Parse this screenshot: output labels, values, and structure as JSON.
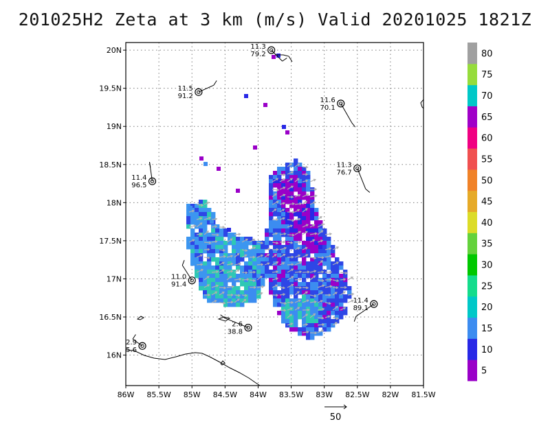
{
  "title": "201025H2 Zeta at 3 km (m/s) Valid 20201025 1821Z",
  "chart_data": {
    "type": "map",
    "xlim": [
      -86.0,
      -81.5
    ],
    "ylim": [
      15.6,
      20.1
    ],
    "x_ticks": [
      {
        "value": -86.0,
        "label": "86W"
      },
      {
        "value": -85.5,
        "label": "85.5W"
      },
      {
        "value": -85.0,
        "label": "85W"
      },
      {
        "value": -84.5,
        "label": "84.5W"
      },
      {
        "value": -84.0,
        "label": "84W"
      },
      {
        "value": -83.5,
        "label": "83.5W"
      },
      {
        "value": -83.0,
        "label": "83W"
      },
      {
        "value": -82.5,
        "label": "82.5W"
      },
      {
        "value": -82.0,
        "label": "82W"
      },
      {
        "value": -81.5,
        "label": "81.5W"
      }
    ],
    "y_ticks": [
      {
        "value": 16.0,
        "label": "16N"
      },
      {
        "value": 16.5,
        "label": "16.5N"
      },
      {
        "value": 17.0,
        "label": "17N"
      },
      {
        "value": 17.5,
        "label": "17.5N"
      },
      {
        "value": 18.0,
        "label": "18N"
      },
      {
        "value": 18.5,
        "label": "18.5N"
      },
      {
        "value": 19.0,
        "label": "19N"
      },
      {
        "value": 19.5,
        "label": "19.5N"
      },
      {
        "value": 20.0,
        "label": "20N"
      }
    ],
    "grid": true,
    "colorbar": {
      "colors": [
        "#9a00c8",
        "#2828e6",
        "#3c8cf0",
        "#00c8c8",
        "#14dc8c",
        "#00c800",
        "#64d23c",
        "#dcdc28",
        "#e6aa28",
        "#f08228",
        "#f05050",
        "#f00082",
        "#a000c8",
        "#00c8c8",
        "#96dc3c",
        "#a0a0a0"
      ],
      "labels": [
        {
          "level": 0,
          "text": "5"
        },
        {
          "level": 1,
          "text": "10"
        },
        {
          "level": 2,
          "text": "15"
        },
        {
          "level": 3,
          "text": "20"
        },
        {
          "level": 4,
          "text": "25"
        },
        {
          "level": 5,
          "text": "30"
        },
        {
          "level": 6,
          "text": "35"
        },
        {
          "level": 7,
          "text": "40"
        },
        {
          "level": 8,
          "text": "45"
        },
        {
          "level": 9,
          "text": "50"
        },
        {
          "level": 10,
          "text": "55"
        },
        {
          "level": 11,
          "text": "60"
        },
        {
          "level": 12,
          "text": "65"
        },
        {
          "level": 13,
          "text": "70"
        },
        {
          "level": 14,
          "text": "75"
        },
        {
          "level": 15,
          "text": "80"
        }
      ]
    },
    "stations": [
      {
        "lon": -83.8,
        "lat": 20.0,
        "top": "11.3",
        "bottom": "79.2"
      },
      {
        "lon": -84.9,
        "lat": 19.45,
        "top": "11.5",
        "bottom": "91.2"
      },
      {
        "lon": -82.75,
        "lat": 19.3,
        "top": "11.6",
        "bottom": "70.1"
      },
      {
        "lon": -85.6,
        "lat": 18.28,
        "top": "11.4",
        "bottom": "96.5"
      },
      {
        "lon": -82.5,
        "lat": 18.45,
        "top": "11.3",
        "bottom": "76.7"
      },
      {
        "lon": -85.0,
        "lat": 16.98,
        "top": "11.0",
        "bottom": "91.4"
      },
      {
        "lon": -82.25,
        "lat": 16.67,
        "top": "11.4",
        "bottom": "89.1"
      },
      {
        "lon": -84.15,
        "lat": 16.36,
        "top": "2.6",
        "bottom": "38.8"
      },
      {
        "lon": -85.75,
        "lat": 16.12,
        "top": "2.9",
        "bottom": "5.6"
      }
    ],
    "reference_vector": {
      "label": "50"
    }
  }
}
